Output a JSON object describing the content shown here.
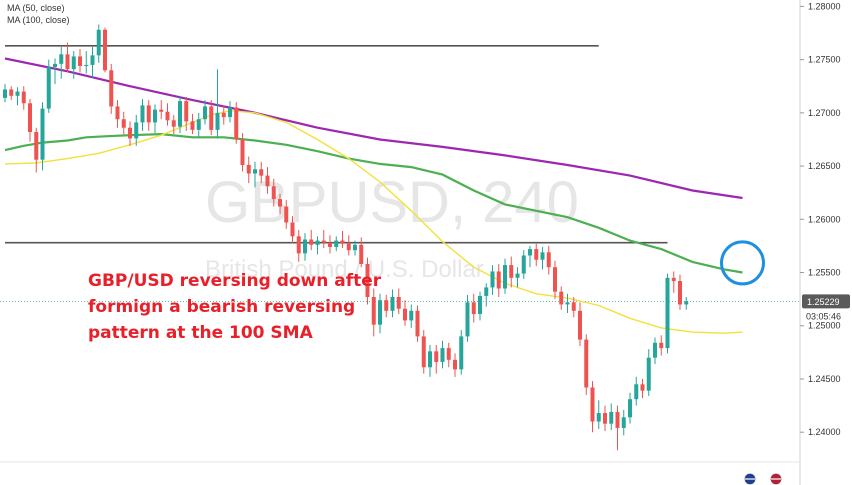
{
  "chart_data": {
    "type": "candlestick",
    "symbol": "GBPUSD",
    "interval": "240",
    "instrument_name": "British Pound / U.S. Dollar",
    "legend": [
      "MA (50, close)",
      "MA (100, close)"
    ],
    "annotation": [
      "GBP/USD reversing down after",
      "formign a bearish reversing",
      "pattern at the 100 SMA"
    ],
    "ylim": [
      1.2372,
      1.2806
    ],
    "y_ticks": [
      "1.28000",
      "1.27500",
      "1.27000",
      "1.26500",
      "1.26000",
      "1.25500",
      "1.25000",
      "1.24500",
      "1.24000"
    ],
    "y_tick_values": [
      1.28,
      1.275,
      1.27,
      1.265,
      1.26,
      1.255,
      1.25,
      1.245,
      1.24
    ],
    "price_label": "1.25229",
    "price_value": 1.25229,
    "countdown_label": "03:05:46",
    "horizontal_levels": [
      {
        "price": 1.2763,
        "from_bar": 0,
        "to_bar": 95
      },
      {
        "price": 1.2578,
        "from_bar": 0,
        "to_bar": 106
      }
    ],
    "highlight_circle": {
      "bar": 118,
      "price": 1.2559
    },
    "candles": [
      [
        1.2714,
        1.2727,
        1.271,
        1.2722
      ],
      [
        1.2722,
        1.2725,
        1.2712,
        1.2716
      ],
      [
        1.2716,
        1.2724,
        1.2707,
        1.272
      ],
      [
        1.272,
        1.2725,
        1.2703,
        1.2709
      ],
      [
        1.2709,
        1.2713,
        1.2673,
        1.2682
      ],
      [
        1.2682,
        1.2686,
        1.2644,
        1.2656
      ],
      [
        1.2656,
        1.271,
        1.2646,
        1.2704
      ],
      [
        1.2704,
        1.275,
        1.27,
        1.2743
      ],
      [
        1.2743,
        1.2751,
        1.2727,
        1.2746
      ],
      [
        1.2746,
        1.2762,
        1.2732,
        1.2755
      ],
      [
        1.2755,
        1.2766,
        1.2738,
        1.2741
      ],
      [
        1.2741,
        1.2758,
        1.2732,
        1.2753
      ],
      [
        1.2753,
        1.276,
        1.2738,
        1.2744
      ],
      [
        1.2744,
        1.2758,
        1.2737,
        1.2745
      ],
      [
        1.2745,
        1.2762,
        1.2733,
        1.2754
      ],
      [
        1.2754,
        1.2783,
        1.2747,
        1.2778
      ],
      [
        1.2778,
        1.278,
        1.2738,
        1.274
      ],
      [
        1.274,
        1.2746,
        1.2699,
        1.2706
      ],
      [
        1.2706,
        1.2712,
        1.2686,
        1.2694
      ],
      [
        1.2694,
        1.2701,
        1.268,
        1.2686
      ],
      [
        1.2686,
        1.2692,
        1.2669,
        1.2676
      ],
      [
        1.2676,
        1.2698,
        1.2669,
        1.2691
      ],
      [
        1.2691,
        1.2713,
        1.2683,
        1.2707
      ],
      [
        1.2707,
        1.2712,
        1.2683,
        1.2691
      ],
      [
        1.2691,
        1.2708,
        1.2681,
        1.2703
      ],
      [
        1.2703,
        1.2712,
        1.2694,
        1.2701
      ],
      [
        1.2701,
        1.2709,
        1.2688,
        1.2693
      ],
      [
        1.2693,
        1.2698,
        1.268,
        1.2687
      ],
      [
        1.2687,
        1.2716,
        1.2681,
        1.2711
      ],
      [
        1.2711,
        1.2715,
        1.2683,
        1.2692
      ],
      [
        1.2692,
        1.2699,
        1.268,
        1.2684
      ],
      [
        1.2684,
        1.27,
        1.2677,
        1.2694
      ],
      [
        1.2694,
        1.2712,
        1.2689,
        1.2706
      ],
      [
        1.2706,
        1.2712,
        1.2679,
        1.2684
      ],
      [
        1.2684,
        1.2741,
        1.2676,
        1.27
      ],
      [
        1.27,
        1.2707,
        1.2689,
        1.2696
      ],
      [
        1.2696,
        1.2711,
        1.2691,
        1.2705
      ],
      [
        1.2705,
        1.271,
        1.2671,
        1.2675
      ],
      [
        1.2675,
        1.2681,
        1.2645,
        1.2651
      ],
      [
        1.2651,
        1.2659,
        1.2634,
        1.2643
      ],
      [
        1.2643,
        1.2654,
        1.263,
        1.2647
      ],
      [
        1.2647,
        1.2654,
        1.2634,
        1.2641
      ],
      [
        1.2641,
        1.2649,
        1.2624,
        1.2631
      ],
      [
        1.2631,
        1.2638,
        1.2612,
        1.2619
      ],
      [
        1.2619,
        1.2624,
        1.2605,
        1.2612
      ],
      [
        1.2612,
        1.2618,
        1.2591,
        1.2597
      ],
      [
        1.2597,
        1.2603,
        1.2578,
        1.2584
      ],
      [
        1.2584,
        1.259,
        1.256,
        1.2568
      ],
      [
        1.2568,
        1.2587,
        1.2561,
        1.2581
      ],
      [
        1.2581,
        1.259,
        1.2571,
        1.2576
      ],
      [
        1.2576,
        1.2584,
        1.2567,
        1.258
      ],
      [
        1.258,
        1.259,
        1.2573,
        1.2578
      ],
      [
        1.2578,
        1.2585,
        1.2568,
        1.2574
      ],
      [
        1.2574,
        1.2584,
        1.257,
        1.258
      ],
      [
        1.258,
        1.2589,
        1.2573,
        1.2577
      ],
      [
        1.2577,
        1.2585,
        1.2566,
        1.2571
      ],
      [
        1.2571,
        1.258,
        1.2566,
        1.2576
      ],
      [
        1.2576,
        1.2583,
        1.2555,
        1.2558
      ],
      [
        1.2558,
        1.2564,
        1.252,
        1.2527
      ],
      [
        1.2527,
        1.2535,
        1.249,
        1.2501
      ],
      [
        1.2501,
        1.253,
        1.2493,
        1.2524
      ],
      [
        1.2524,
        1.2529,
        1.2508,
        1.2514
      ],
      [
        1.2514,
        1.2534,
        1.2508,
        1.2527
      ],
      [
        1.2527,
        1.2535,
        1.2511,
        1.2516
      ],
      [
        1.2516,
        1.2524,
        1.25,
        1.2505
      ],
      [
        1.2505,
        1.252,
        1.2498,
        1.2514
      ],
      [
        1.2514,
        1.2519,
        1.2485,
        1.249
      ],
      [
        1.249,
        1.2496,
        1.2455,
        1.2461
      ],
      [
        1.2461,
        1.2482,
        1.2452,
        1.2476
      ],
      [
        1.2476,
        1.2482,
        1.2455,
        1.2466
      ],
      [
        1.2466,
        1.2486,
        1.246,
        1.2479
      ],
      [
        1.2479,
        1.2484,
        1.2461,
        1.2468
      ],
      [
        1.2468,
        1.2474,
        1.2452,
        1.2459
      ],
      [
        1.2459,
        1.2496,
        1.2454,
        1.249
      ],
      [
        1.249,
        1.2529,
        1.2485,
        1.2522
      ],
      [
        1.2522,
        1.253,
        1.2503,
        1.2511
      ],
      [
        1.2511,
        1.2532,
        1.2505,
        1.2528
      ],
      [
        1.2528,
        1.254,
        1.2518,
        1.2536
      ],
      [
        1.2536,
        1.2557,
        1.2529,
        1.2551
      ],
      [
        1.2551,
        1.2558,
        1.2527,
        1.2535
      ],
      [
        1.2535,
        1.2563,
        1.253,
        1.2557
      ],
      [
        1.2557,
        1.2565,
        1.2536,
        1.2545
      ],
      [
        1.2545,
        1.2555,
        1.2536,
        1.2549
      ],
      [
        1.2549,
        1.2571,
        1.2544,
        1.2566
      ],
      [
        1.2566,
        1.2575,
        1.2555,
        1.2572
      ],
      [
        1.2572,
        1.2577,
        1.2556,
        1.2562
      ],
      [
        1.2562,
        1.2574,
        1.2553,
        1.2569
      ],
      [
        1.2569,
        1.2575,
        1.2548,
        1.2555
      ],
      [
        1.2555,
        1.2561,
        1.2525,
        1.2532
      ],
      [
        1.2532,
        1.2537,
        1.2515,
        1.252
      ],
      [
        1.252,
        1.253,
        1.2512,
        1.2522
      ],
      [
        1.2522,
        1.2527,
        1.2508,
        1.2514
      ],
      [
        1.2514,
        1.2522,
        1.2481,
        1.2487
      ],
      [
        1.2487,
        1.2492,
        1.2435,
        1.2442
      ],
      [
        1.2442,
        1.2448,
        1.24,
        1.241
      ],
      [
        1.241,
        1.243,
        1.2403,
        1.2418
      ],
      [
        1.2418,
        1.2425,
        1.2401,
        1.2408
      ],
      [
        1.2408,
        1.2427,
        1.2402,
        1.2419
      ],
      [
        1.2419,
        1.2425,
        1.2383,
        1.2404
      ],
      [
        1.2404,
        1.2421,
        1.2397,
        1.2414
      ],
      [
        1.2414,
        1.2437,
        1.2408,
        1.2431
      ],
      [
        1.2431,
        1.2452,
        1.2425,
        1.2445
      ],
      [
        1.2445,
        1.245,
        1.2432,
        1.2439
      ],
      [
        1.2439,
        1.2478,
        1.2434,
        1.247
      ],
      [
        1.247,
        1.2489,
        1.2464,
        1.2484
      ],
      [
        1.2484,
        1.2491,
        1.2472,
        1.2479
      ],
      [
        1.2479,
        1.2549,
        1.2474,
        1.2545
      ],
      [
        1.2545,
        1.2551,
        1.2531,
        1.2542
      ],
      [
        1.2542,
        1.2548,
        1.2515,
        1.252
      ],
      [
        1.252,
        1.2527,
        1.2515,
        1.2523
      ]
    ],
    "ma_50": [
      [
        0,
        1.2652
      ],
      [
        5,
        1.2653
      ],
      [
        10,
        1.2657
      ],
      [
        15,
        1.2662
      ],
      [
        20,
        1.267
      ],
      [
        25,
        1.2679
      ],
      [
        30,
        1.2691
      ],
      [
        33,
        1.2698
      ],
      [
        36,
        1.2702
      ],
      [
        40,
        1.27
      ],
      [
        45,
        1.2691
      ],
      [
        50,
        1.2675
      ],
      [
        55,
        1.2657
      ],
      [
        60,
        1.2635
      ],
      [
        65,
        1.2608
      ],
      [
        70,
        1.2579
      ],
      [
        75,
        1.2555
      ],
      [
        80,
        1.254
      ],
      [
        85,
        1.253
      ],
      [
        90,
        1.2526
      ],
      [
        95,
        1.2519
      ],
      [
        100,
        1.2507
      ],
      [
        105,
        1.2498
      ],
      [
        110,
        1.2494
      ],
      [
        115,
        1.2493
      ],
      [
        118,
        1.2494
      ]
    ],
    "ma_100": [
      [
        0,
        1.2665
      ],
      [
        3,
        1.2669
      ],
      [
        6,
        1.2672
      ],
      [
        10,
        1.2674
      ],
      [
        13,
        1.2677
      ],
      [
        16,
        1.2678
      ],
      [
        20,
        1.2679
      ],
      [
        25,
        1.268
      ],
      [
        30,
        1.2677
      ],
      [
        35,
        1.2677
      ],
      [
        40,
        1.2674
      ],
      [
        45,
        1.267
      ],
      [
        50,
        1.2664
      ],
      [
        55,
        1.2657
      ],
      [
        60,
        1.2652
      ],
      [
        65,
        1.2649
      ],
      [
        70,
        1.2642
      ],
      [
        75,
        1.2627
      ],
      [
        80,
        1.2614
      ],
      [
        85,
        1.2608
      ],
      [
        90,
        1.2602
      ],
      [
        95,
        1.2592
      ],
      [
        100,
        1.258
      ],
      [
        105,
        1.2572
      ],
      [
        110,
        1.256
      ],
      [
        115,
        1.2553
      ],
      [
        118,
        1.255
      ]
    ],
    "ma_200": [
      [
        0,
        1.2751
      ],
      [
        10,
        1.2739
      ],
      [
        20,
        1.2725
      ],
      [
        30,
        1.2712
      ],
      [
        40,
        1.27
      ],
      [
        50,
        1.2686
      ],
      [
        60,
        1.2675
      ],
      [
        70,
        1.2668
      ],
      [
        80,
        1.266
      ],
      [
        90,
        1.2651
      ],
      [
        100,
        1.2641
      ],
      [
        110,
        1.2627
      ],
      [
        118,
        1.262
      ]
    ]
  },
  "colors": {
    "up": "#26a69a",
    "down": "#ef5350",
    "ma_50": "#f2e13a",
    "ma_100": "#4caf50",
    "ma_200": "#9c27b0",
    "level_line": "#555555",
    "circle": "#1e90e0",
    "price_tag": "#5a5a5a",
    "annotation_text": "#e8202a"
  },
  "icons": [
    "flag-icon",
    "flag-icon"
  ]
}
